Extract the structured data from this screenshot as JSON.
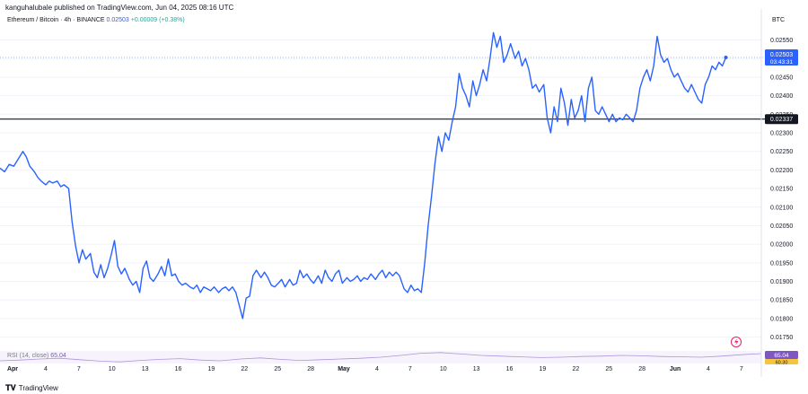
{
  "header": {
    "published": "kanguhalubale published on TradingView.com, Jun 04, 2025 08:16 UTC",
    "symbol": "Ethereum / Bitcoin · 4h · BINANCE",
    "price": "0.02503",
    "change": "+0.00009 (+0.38%)",
    "currency": "BTC"
  },
  "rsi": {
    "label": "RSI (14, close)",
    "value": "65.04",
    "axis_value": "65.04",
    "axis_value2": "60.30"
  },
  "footer": {
    "brand": "TradingView",
    "logo": "tradingview-logo"
  },
  "colors": {
    "line": "#2962ff",
    "hline": "#131722",
    "price_tag": "#2962ff",
    "level_tag": "#131722",
    "rsi": "#7e57c2"
  },
  "chart_data": {
    "type": "line",
    "title": "",
    "xlabel": "",
    "ylabel": "",
    "ylim": [
      0.0172,
      0.0259
    ],
    "y_ticks": [
      "0.02550",
      "0.02500",
      "0.02450",
      "0.02400",
      "0.02350",
      "0.02300",
      "0.02250",
      "0.02200",
      "0.02150",
      "0.02100",
      "0.02050",
      "0.02000",
      "0.01950",
      "0.01900",
      "0.01850",
      "0.01800",
      "0.01750"
    ],
    "x_ticks": [
      "Apr",
      "4",
      "7",
      "10",
      "13",
      "16",
      "19",
      "22",
      "25",
      "28",
      "May",
      "4",
      "7",
      "10",
      "13",
      "16",
      "19",
      "22",
      "25",
      "28",
      "Jun",
      "4",
      "7"
    ],
    "x_range": [
      0,
      66.5
    ],
    "last_price": {
      "value": 0.02503,
      "label": "0.02503",
      "countdown": "03:43:31"
    },
    "horizontal_line": {
      "value": 0.02337,
      "label": "0.02337"
    },
    "series": [
      {
        "values": [
          [
            0,
            0.02205
          ],
          [
            0.4,
            0.02195
          ],
          [
            0.8,
            0.02215
          ],
          [
            1.2,
            0.0221
          ],
          [
            1.6,
            0.0223
          ],
          [
            2.0,
            0.0225
          ],
          [
            2.3,
            0.02235
          ],
          [
            2.6,
            0.0221
          ],
          [
            3.0,
            0.02195
          ],
          [
            3.3,
            0.0218
          ],
          [
            3.6,
            0.0217
          ],
          [
            4.0,
            0.0216
          ],
          [
            4.3,
            0.0217
          ],
          [
            4.6,
            0.02165
          ],
          [
            5.0,
            0.0217
          ],
          [
            5.3,
            0.02155
          ],
          [
            5.6,
            0.0216
          ],
          [
            6.0,
            0.0215
          ],
          [
            6.3,
            0.0206
          ],
          [
            6.6,
            0.01995
          ],
          [
            6.9,
            0.0195
          ],
          [
            7.2,
            0.01985
          ],
          [
            7.5,
            0.0196
          ],
          [
            7.9,
            0.01975
          ],
          [
            8.2,
            0.01925
          ],
          [
            8.5,
            0.0191
          ],
          [
            8.8,
            0.01945
          ],
          [
            9.1,
            0.0191
          ],
          [
            9.4,
            0.01935
          ],
          [
            9.7,
            0.0197
          ],
          [
            10.0,
            0.0201
          ],
          [
            10.3,
            0.0194
          ],
          [
            10.6,
            0.0192
          ],
          [
            10.9,
            0.01935
          ],
          [
            11.3,
            0.01905
          ],
          [
            11.6,
            0.0189
          ],
          [
            11.9,
            0.019
          ],
          [
            12.2,
            0.0187
          ],
          [
            12.5,
            0.01935
          ],
          [
            12.8,
            0.01955
          ],
          [
            13.1,
            0.0191
          ],
          [
            13.4,
            0.019
          ],
          [
            13.8,
            0.0192
          ],
          [
            14.1,
            0.0194
          ],
          [
            14.4,
            0.01915
          ],
          [
            14.7,
            0.0196
          ],
          [
            15.0,
            0.01915
          ],
          [
            15.3,
            0.0192
          ],
          [
            15.6,
            0.019
          ],
          [
            15.9,
            0.0189
          ],
          [
            16.2,
            0.01895
          ],
          [
            16.6,
            0.01885
          ],
          [
            16.9,
            0.0188
          ],
          [
            17.2,
            0.0189
          ],
          [
            17.5,
            0.0187
          ],
          [
            17.8,
            0.01885
          ],
          [
            18.1,
            0.0188
          ],
          [
            18.4,
            0.01875
          ],
          [
            18.7,
            0.01885
          ],
          [
            19.1,
            0.0187
          ],
          [
            19.4,
            0.0188
          ],
          [
            19.7,
            0.01885
          ],
          [
            20.0,
            0.01875
          ],
          [
            20.3,
            0.01885
          ],
          [
            20.6,
            0.0187
          ],
          [
            20.9,
            0.01835
          ],
          [
            21.2,
            0.018
          ],
          [
            21.5,
            0.01855
          ],
          [
            21.8,
            0.0186
          ],
          [
            22.1,
            0.01915
          ],
          [
            22.4,
            0.0193
          ],
          [
            22.8,
            0.0191
          ],
          [
            23.1,
            0.01925
          ],
          [
            23.4,
            0.0191
          ],
          [
            23.7,
            0.0189
          ],
          [
            24.0,
            0.01885
          ],
          [
            24.3,
            0.01895
          ],
          [
            24.6,
            0.01905
          ],
          [
            24.9,
            0.01885
          ],
          [
            25.3,
            0.01905
          ],
          [
            25.6,
            0.0189
          ],
          [
            25.9,
            0.01895
          ],
          [
            26.2,
            0.0193
          ],
          [
            26.5,
            0.0191
          ],
          [
            26.8,
            0.0192
          ],
          [
            27.1,
            0.01905
          ],
          [
            27.4,
            0.01895
          ],
          [
            27.8,
            0.01915
          ],
          [
            28.1,
            0.01895
          ],
          [
            28.4,
            0.0193
          ],
          [
            28.7,
            0.0191
          ],
          [
            29.0,
            0.019
          ],
          [
            29.3,
            0.0192
          ],
          [
            29.6,
            0.0193
          ],
          [
            29.9,
            0.01895
          ],
          [
            30.3,
            0.0191
          ],
          [
            30.6,
            0.019
          ],
          [
            30.9,
            0.01905
          ],
          [
            31.2,
            0.01915
          ],
          [
            31.5,
            0.019
          ],
          [
            31.8,
            0.0191
          ],
          [
            32.1,
            0.01905
          ],
          [
            32.4,
            0.0192
          ],
          [
            32.8,
            0.01905
          ],
          [
            33.1,
            0.0192
          ],
          [
            33.4,
            0.0193
          ],
          [
            33.7,
            0.0191
          ],
          [
            34.0,
            0.01925
          ],
          [
            34.3,
            0.01915
          ],
          [
            34.6,
            0.01925
          ],
          [
            34.9,
            0.01915
          ],
          [
            35.3,
            0.0188
          ],
          [
            35.6,
            0.0187
          ],
          [
            35.9,
            0.0189
          ],
          [
            36.2,
            0.01875
          ],
          [
            36.5,
            0.0188
          ],
          [
            36.8,
            0.0187
          ],
          [
            37.1,
            0.0195
          ],
          [
            37.4,
            0.0205
          ],
          [
            37.7,
            0.0213
          ],
          [
            38.0,
            0.0222
          ],
          [
            38.3,
            0.0229
          ],
          [
            38.6,
            0.0225
          ],
          [
            38.9,
            0.023
          ],
          [
            39.2,
            0.0228
          ],
          [
            39.5,
            0.0233
          ],
          [
            39.8,
            0.0237
          ],
          [
            40.1,
            0.0246
          ],
          [
            40.4,
            0.0242
          ],
          [
            40.7,
            0.024
          ],
          [
            41.0,
            0.0237
          ],
          [
            41.3,
            0.0244
          ],
          [
            41.6,
            0.024
          ],
          [
            41.9,
            0.0243
          ],
          [
            42.2,
            0.0247
          ],
          [
            42.5,
            0.0244
          ],
          [
            42.8,
            0.025
          ],
          [
            43.1,
            0.0257
          ],
          [
            43.4,
            0.0253
          ],
          [
            43.7,
            0.0256
          ],
          [
            44.0,
            0.0249
          ],
          [
            44.3,
            0.0251
          ],
          [
            44.6,
            0.0254
          ],
          [
            45.0,
            0.025
          ],
          [
            45.3,
            0.0252
          ],
          [
            45.6,
            0.0248
          ],
          [
            45.9,
            0.025
          ],
          [
            46.2,
            0.0247
          ],
          [
            46.5,
            0.0242
          ],
          [
            46.8,
            0.0243
          ],
          [
            47.1,
            0.0241
          ],
          [
            47.5,
            0.0243
          ],
          [
            47.8,
            0.0234
          ],
          [
            48.1,
            0.023
          ],
          [
            48.4,
            0.0237
          ],
          [
            48.7,
            0.0233
          ],
          [
            49.0,
            0.0242
          ],
          [
            49.3,
            0.0238
          ],
          [
            49.6,
            0.0232
          ],
          [
            49.9,
            0.0239
          ],
          [
            50.2,
            0.0234
          ],
          [
            50.5,
            0.0236
          ],
          [
            50.8,
            0.024
          ],
          [
            51.1,
            0.0233
          ],
          [
            51.4,
            0.0242
          ],
          [
            51.7,
            0.0245
          ],
          [
            52.0,
            0.0236
          ],
          [
            52.3,
            0.0235
          ],
          [
            52.6,
            0.0237
          ],
          [
            52.9,
            0.0235
          ],
          [
            53.2,
            0.0233
          ],
          [
            53.5,
            0.0235
          ],
          [
            53.8,
            0.0233
          ],
          [
            54.1,
            0.0234
          ],
          [
            54.4,
            0.02335
          ],
          [
            54.7,
            0.0235
          ],
          [
            55.0,
            0.0234
          ],
          [
            55.3,
            0.0233
          ],
          [
            55.6,
            0.0236
          ],
          [
            55.9,
            0.0242
          ],
          [
            56.2,
            0.0245
          ],
          [
            56.5,
            0.0247
          ],
          [
            56.8,
            0.0244
          ],
          [
            57.1,
            0.0248
          ],
          [
            57.4,
            0.0256
          ],
          [
            57.7,
            0.0251
          ],
          [
            58.0,
            0.0249
          ],
          [
            58.3,
            0.025
          ],
          [
            58.6,
            0.0247
          ],
          [
            58.9,
            0.0245
          ],
          [
            59.2,
            0.0246
          ],
          [
            59.5,
            0.0244
          ],
          [
            59.8,
            0.0242
          ],
          [
            60.1,
            0.0241
          ],
          [
            60.4,
            0.0243
          ],
          [
            60.7,
            0.0241
          ],
          [
            61.0,
            0.0239
          ],
          [
            61.3,
            0.0238
          ],
          [
            61.6,
            0.0243
          ],
          [
            61.9,
            0.0245
          ],
          [
            62.2,
            0.0248
          ],
          [
            62.5,
            0.0247
          ],
          [
            62.8,
            0.0249
          ],
          [
            63.1,
            0.0248
          ],
          [
            63.4,
            0.02503
          ]
        ]
      }
    ],
    "rsi_values": [
      45,
      47,
      50,
      52,
      48,
      44,
      42,
      46,
      49,
      51,
      47,
      45,
      50,
      53,
      49,
      46,
      48,
      50,
      52,
      55,
      60,
      66,
      68,
      64,
      60,
      58,
      56,
      54,
      55,
      57,
      58,
      60,
      59,
      57,
      56,
      55,
      58,
      62,
      65
    ]
  }
}
